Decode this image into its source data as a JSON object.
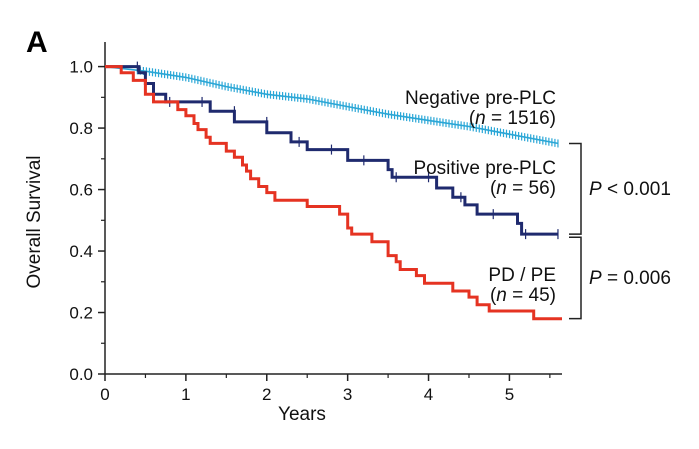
{
  "chart_data": {
    "type": "line",
    "panel_label": "A",
    "xlabel": "Years",
    "ylabel": "Overall Survival",
    "xlim": [
      0,
      5.65
    ],
    "ylim": [
      0,
      1.08
    ],
    "x_ticks": [
      "0",
      "1",
      "2",
      "3",
      "4",
      "5"
    ],
    "y_ticks": [
      "0.0",
      "0.2",
      "0.4",
      "0.6",
      "0.8",
      "1.0"
    ],
    "series": [
      {
        "name": "Negative pre-PLC",
        "n_label": "(n = 1516)",
        "n_prefix": "(",
        "n_italic": "n",
        "n_suffix": " = 1516)",
        "color": "#29a6d6",
        "censor_marks": true,
        "points": [
          [
            0,
            1.0
          ],
          [
            0.5,
            0.985
          ],
          [
            1.0,
            0.965
          ],
          [
            1.5,
            0.935
          ],
          [
            2.0,
            0.91
          ],
          [
            2.5,
            0.895
          ],
          [
            3.0,
            0.87
          ],
          [
            3.5,
            0.845
          ],
          [
            4.0,
            0.825
          ],
          [
            4.5,
            0.805
          ],
          [
            5.0,
            0.78
          ],
          [
            5.5,
            0.755
          ],
          [
            5.6,
            0.75
          ]
        ]
      },
      {
        "name": "Positive pre-PLC",
        "n_label": "(n = 56)",
        "n_prefix": "(",
        "n_italic": "n",
        "n_suffix": " = 56)",
        "color": "#1f2a6e",
        "censor_marks": true,
        "points": [
          [
            0,
            1.0
          ],
          [
            0.42,
            1.0
          ],
          [
            0.42,
            0.98
          ],
          [
            0.5,
            0.98
          ],
          [
            0.5,
            0.945
          ],
          [
            0.6,
            0.945
          ],
          [
            0.6,
            0.91
          ],
          [
            0.75,
            0.91
          ],
          [
            0.75,
            0.885
          ],
          [
            1.3,
            0.885
          ],
          [
            1.3,
            0.855
          ],
          [
            1.6,
            0.855
          ],
          [
            1.6,
            0.82
          ],
          [
            2.0,
            0.82
          ],
          [
            2.0,
            0.785
          ],
          [
            2.3,
            0.785
          ],
          [
            2.3,
            0.755
          ],
          [
            2.5,
            0.755
          ],
          [
            2.5,
            0.73
          ],
          [
            3.0,
            0.73
          ],
          [
            3.0,
            0.695
          ],
          [
            3.5,
            0.695
          ],
          [
            3.5,
            0.665
          ],
          [
            3.55,
            0.665
          ],
          [
            3.55,
            0.64
          ],
          [
            4.1,
            0.64
          ],
          [
            4.1,
            0.605
          ],
          [
            4.3,
            0.605
          ],
          [
            4.3,
            0.575
          ],
          [
            4.45,
            0.575
          ],
          [
            4.45,
            0.55
          ],
          [
            4.6,
            0.55
          ],
          [
            4.6,
            0.52
          ],
          [
            5.1,
            0.52
          ],
          [
            5.1,
            0.49
          ],
          [
            5.15,
            0.49
          ],
          [
            5.15,
            0.455
          ],
          [
            5.6,
            0.455
          ]
        ]
      },
      {
        "name": "PD / PE",
        "n_label": "(n = 45)",
        "n_prefix": "(",
        "n_italic": "n",
        "n_suffix": " = 45)",
        "color": "#e53322",
        "censor_marks": false,
        "points": [
          [
            0,
            1.0
          ],
          [
            0.2,
            1.0
          ],
          [
            0.2,
            0.98
          ],
          [
            0.35,
            0.98
          ],
          [
            0.35,
            0.955
          ],
          [
            0.5,
            0.955
          ],
          [
            0.5,
            0.91
          ],
          [
            0.6,
            0.91
          ],
          [
            0.6,
            0.885
          ],
          [
            0.9,
            0.885
          ],
          [
            0.9,
            0.86
          ],
          [
            1.0,
            0.86
          ],
          [
            1.0,
            0.84
          ],
          [
            1.1,
            0.84
          ],
          [
            1.1,
            0.815
          ],
          [
            1.15,
            0.815
          ],
          [
            1.15,
            0.795
          ],
          [
            1.25,
            0.795
          ],
          [
            1.25,
            0.77
          ],
          [
            1.3,
            0.77
          ],
          [
            1.3,
            0.75
          ],
          [
            1.5,
            0.75
          ],
          [
            1.5,
            0.725
          ],
          [
            1.6,
            0.725
          ],
          [
            1.6,
            0.705
          ],
          [
            1.7,
            0.705
          ],
          [
            1.7,
            0.68
          ],
          [
            1.75,
            0.68
          ],
          [
            1.75,
            0.66
          ],
          [
            1.8,
            0.66
          ],
          [
            1.8,
            0.635
          ],
          [
            1.9,
            0.635
          ],
          [
            1.9,
            0.61
          ],
          [
            2.0,
            0.61
          ],
          [
            2.0,
            0.59
          ],
          [
            2.1,
            0.59
          ],
          [
            2.1,
            0.565
          ],
          [
            2.5,
            0.565
          ],
          [
            2.5,
            0.545
          ],
          [
            2.9,
            0.545
          ],
          [
            2.9,
            0.52
          ],
          [
            3.0,
            0.52
          ],
          [
            3.0,
            0.475
          ],
          [
            3.05,
            0.475
          ],
          [
            3.05,
            0.455
          ],
          [
            3.3,
            0.455
          ],
          [
            3.3,
            0.43
          ],
          [
            3.5,
            0.43
          ],
          [
            3.5,
            0.385
          ],
          [
            3.6,
            0.385
          ],
          [
            3.6,
            0.365
          ],
          [
            3.65,
            0.365
          ],
          [
            3.65,
            0.34
          ],
          [
            3.85,
            0.34
          ],
          [
            3.85,
            0.32
          ],
          [
            3.95,
            0.32
          ],
          [
            3.95,
            0.295
          ],
          [
            4.3,
            0.295
          ],
          [
            4.3,
            0.27
          ],
          [
            4.5,
            0.27
          ],
          [
            4.5,
            0.25
          ],
          [
            4.6,
            0.25
          ],
          [
            4.6,
            0.225
          ],
          [
            4.75,
            0.225
          ],
          [
            4.75,
            0.205
          ],
          [
            5.3,
            0.205
          ],
          [
            5.3,
            0.18
          ],
          [
            5.65,
            0.18
          ]
        ]
      }
    ],
    "comparisons": [
      {
        "label_prefix": "",
        "label_italic": "P",
        "label_suffix": " < 0.001",
        "from_series": "Negative pre-PLC",
        "to_series": "Positive pre-PLC",
        "from_y": 0.75,
        "to_y": 0.455
      },
      {
        "label_prefix": "",
        "label_italic": "P",
        "label_suffix": " = 0.006",
        "from_series": "Positive pre-PLC",
        "to_series": "PD / PE",
        "from_y": 0.445,
        "to_y": 0.18
      }
    ]
  }
}
